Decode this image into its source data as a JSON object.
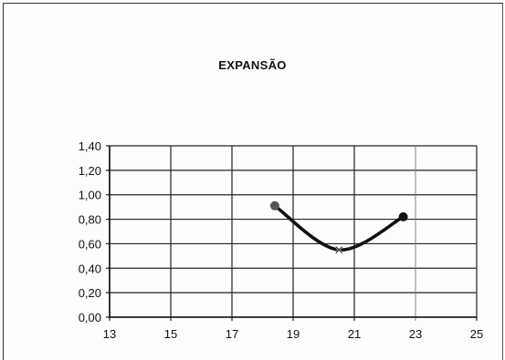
{
  "chart_data": {
    "type": "line",
    "title": "EXPANSÃO",
    "xlabel": "",
    "ylabel": "",
    "xlim": [
      13,
      25
    ],
    "ylim": [
      0,
      1.4
    ],
    "x_ticks": [
      "13",
      "15",
      "17",
      "19",
      "21",
      "23",
      "25"
    ],
    "y_ticks": [
      "0,00",
      "0,20",
      "0,40",
      "0,60",
      "0,80",
      "1,00",
      "1,20",
      "1,40"
    ],
    "grid": true,
    "series": [
      {
        "points": [
          {
            "x": 18.4,
            "y": 0.91
          },
          {
            "x": 20.5,
            "y": 0.55
          },
          {
            "x": 22.6,
            "y": 0.82
          }
        ],
        "color": "#111111"
      }
    ]
  }
}
